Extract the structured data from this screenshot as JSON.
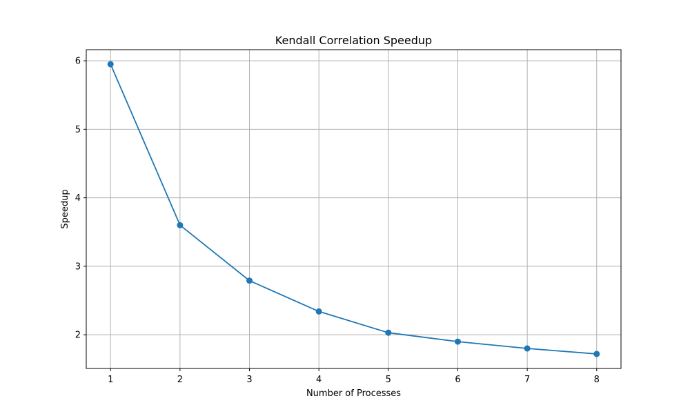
{
  "chart_data": {
    "type": "line",
    "title": "Kendall Correlation Speedup",
    "xlabel": "Number of Processes",
    "ylabel": "Speedup",
    "x": [
      1,
      2,
      3,
      4,
      5,
      6,
      7,
      8
    ],
    "series": [
      {
        "values": [
          5.95,
          3.6,
          2.79,
          2.34,
          2.03,
          1.9,
          1.8,
          1.72
        ],
        "color": "#1f77b4",
        "marker": "circle"
      }
    ],
    "xlim": [
      0.65,
      8.35
    ],
    "ylim": [
      1.508,
      6.162
    ],
    "xticks": [
      1,
      2,
      3,
      4,
      5,
      6,
      7,
      8
    ],
    "yticks": [
      2,
      3,
      4,
      5,
      6
    ],
    "grid": true,
    "grid_color": "#b0b0b0"
  }
}
